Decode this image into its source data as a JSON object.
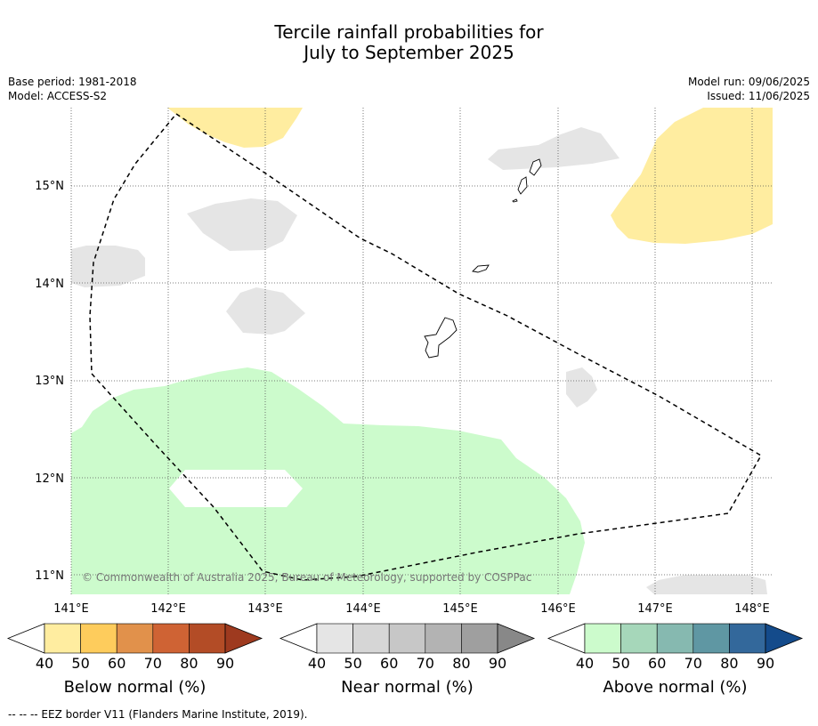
{
  "header": {
    "title_line1": "Tercile rainfall probabilities for",
    "title_line2": "July to September 2025",
    "base_period": "Base period: 1981-2018",
    "model": "Model: ACCESS-S2",
    "model_run": "Model run: 09/06/2025",
    "issued": "Issued: 11/06/2025"
  },
  "map": {
    "lat_labels": [
      "15°N",
      "14°N",
      "13°N",
      "12°N",
      "11°N"
    ],
    "lon_labels": [
      "141°E",
      "142°E",
      "143°E",
      "144°E",
      "145°E",
      "146°E",
      "147°E",
      "148°E"
    ],
    "copyright": "© Commonwealth of Australia 2025, Bureau of Meteorology, supported by COSPPac",
    "colors": {
      "below_40": "#ffeda0",
      "near_40": "#e5e5e5",
      "above_40": "#ccfbcc",
      "eez_line": "#000000"
    }
  },
  "colorbars": [
    {
      "name": "below",
      "label": "Below normal (%)",
      "ticks": [
        "40",
        "50",
        "60",
        "70",
        "80",
        "90"
      ],
      "colors": [
        "#ffeda0",
        "#fecc5c",
        "#e1914b",
        "#cf6334",
        "#b34c26",
        "#9e3a1f"
      ]
    },
    {
      "name": "near",
      "label": "Near normal (%)",
      "ticks": [
        "40",
        "50",
        "60",
        "70",
        "80",
        "90"
      ],
      "colors": [
        "#e5e5e5",
        "#d6d6d6",
        "#c7c7c7",
        "#b3b3b3",
        "#9f9f9f",
        "#888888"
      ]
    },
    {
      "name": "above",
      "label": "Above normal (%)",
      "ticks": [
        "40",
        "50",
        "60",
        "70",
        "80",
        "90"
      ],
      "colors": [
        "#ccfbcc",
        "#a6d7ba",
        "#86b9b0",
        "#5f97a3",
        "#33689b",
        "#144b8b"
      ]
    }
  ],
  "legend_note": "--  --  -- EEZ border V11 (Flanders Marine Institute, 2019)."
}
